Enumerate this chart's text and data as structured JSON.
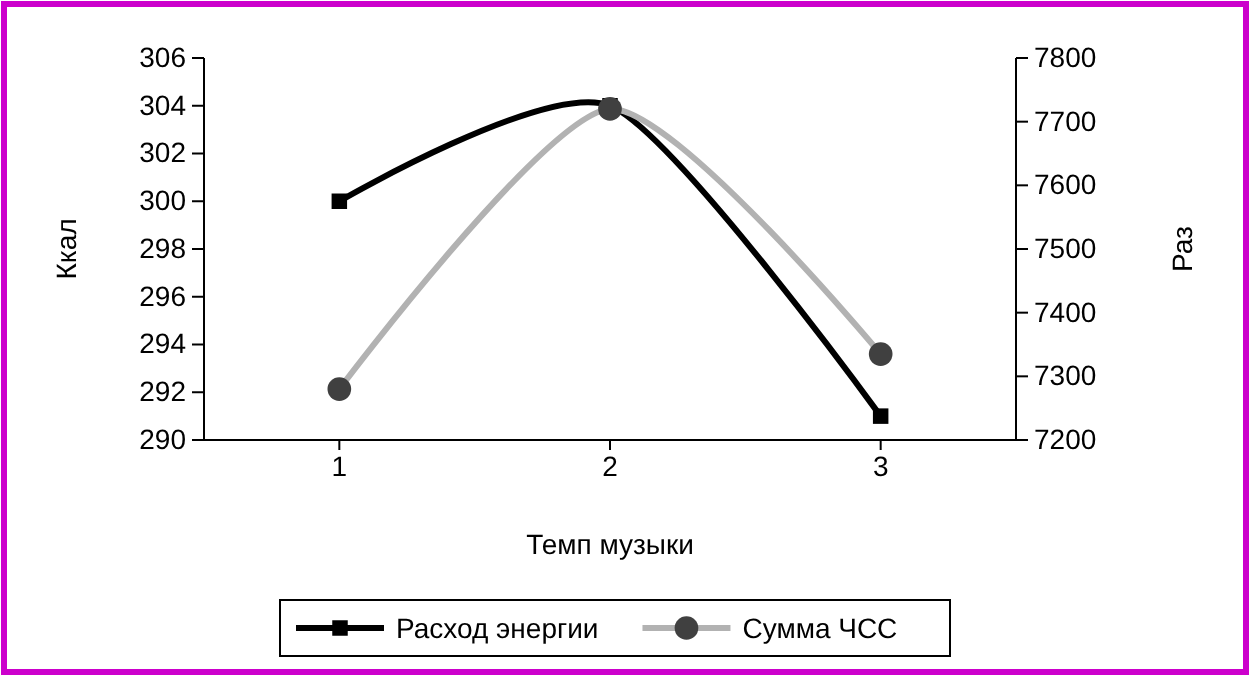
{
  "chart_data": {
    "type": "line",
    "xlabel": "Темп музыки",
    "ylabel": "Ккал",
    "y2label": "Раз",
    "categories": [
      "1",
      "2",
      "3"
    ],
    "series": [
      {
        "name": "Расход энергии",
        "color": "#000000",
        "values": [
          300,
          304,
          291
        ],
        "marker": "square"
      },
      {
        "name": "Сумма ЧСС",
        "color": "#b2b2b2",
        "values": [
          7280,
          7720,
          7335
        ],
        "axis": "y2",
        "marker": "circle"
      }
    ],
    "ylim": [
      290,
      306
    ],
    "yticks": [
      290,
      292,
      294,
      296,
      298,
      300,
      302,
      304,
      306
    ],
    "y2lim": [
      7200,
      7800
    ],
    "y2ticks": [
      7200,
      7300,
      7400,
      7500,
      7600,
      7700,
      7800
    ],
    "grid": false,
    "legend": "bottom",
    "line_style": "solid"
  }
}
